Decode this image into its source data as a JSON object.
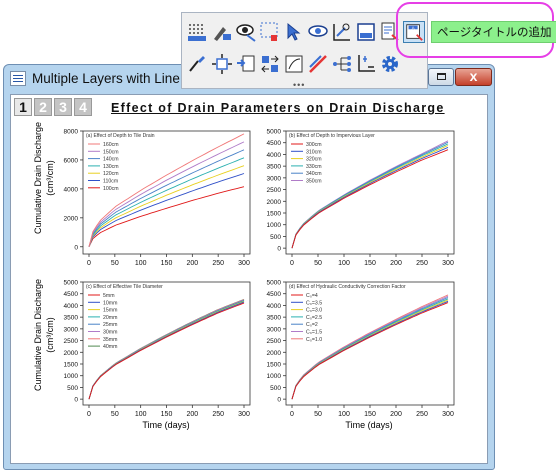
{
  "window": {
    "title": "Multiple Layers with Line Plo",
    "close_label": "x"
  },
  "layers": {
    "tabs": [
      "1",
      "2",
      "3",
      "4"
    ],
    "active": "1"
  },
  "page_title": "Effect of Drain Parameters on Drain Discharge",
  "tooltip": {
    "text": "ページタイトルの追加"
  },
  "toolbar": {
    "row1": [
      "speed-mode-icon",
      "data-reader-icon",
      "show-hide-icon",
      "data-selector-icon",
      "pointer-icon",
      "view-icon",
      "scale-in-icon",
      "rescale-icon",
      "layer-content-icon",
      "add-page-title-icon"
    ],
    "row2": [
      "brush-icon",
      "arrange-layers-icon",
      "merge-graph-icon",
      "swap-layers-icon",
      "add-axis-icon",
      "draw-line-icon",
      "tree-icon",
      "axis-break-icon",
      "settings-gear-icon"
    ],
    "selected": "add-page-title-icon"
  },
  "axis_text": {
    "y_label_line1": "Cumulative Drain Discharge",
    "y_label_left_top": "(cm³/cm)",
    "y_label_left_bottom": "(cm³/cm)",
    "x_label": "Time (days)"
  },
  "chart_data": [
    {
      "type": "line",
      "title": "(a) Effect of Depth to Tile Drain",
      "xlim": [
        0,
        300
      ],
      "ylim": [
        -500,
        8000
      ],
      "xticks": [
        0,
        50,
        100,
        150,
        200,
        250,
        300
      ],
      "yticks": [
        0,
        2000,
        4000,
        6000,
        8000
      ],
      "legend_position": "top-left",
      "x": [
        0,
        5,
        20,
        50,
        100,
        150,
        200,
        250,
        300
      ],
      "series": [
        {
          "name": "160cm",
          "color": "#f07878",
          "values": [
            0,
            900,
            1750,
            2750,
            3900,
            4950,
            5950,
            6900,
            7800
          ]
        },
        {
          "name": "150cm",
          "color": "#b07cc8",
          "values": [
            0,
            830,
            1620,
            2540,
            3620,
            4600,
            5520,
            6400,
            7250
          ]
        },
        {
          "name": "140cm",
          "color": "#4a82c8",
          "values": [
            0,
            770,
            1500,
            2350,
            3340,
            4250,
            5100,
            5920,
            6700
          ]
        },
        {
          "name": "130cm",
          "color": "#2ab0b0",
          "values": [
            0,
            700,
            1380,
            2160,
            3070,
            3900,
            4690,
            5430,
            6150
          ]
        },
        {
          "name": "120cm",
          "color": "#e8d020",
          "values": [
            0,
            640,
            1260,
            1970,
            2800,
            3560,
            4280,
            4960,
            5600
          ]
        },
        {
          "name": "110cm",
          "color": "#3050c8",
          "values": [
            0,
            580,
            1140,
            1780,
            2530,
            3210,
            3860,
            4480,
            5060
          ]
        },
        {
          "name": "100cm",
          "color": "#e01818",
          "values": [
            0,
            480,
            940,
            1470,
            2100,
            2660,
            3200,
            3700,
            4150
          ]
        }
      ]
    },
    {
      "type": "line",
      "title": "(b) Effect of Depth to Impervious Layer",
      "xlim": [
        0,
        300
      ],
      "ylim": [
        -250,
        5000
      ],
      "xticks": [
        0,
        50,
        100,
        150,
        200,
        250,
        300
      ],
      "yticks": [
        0,
        500,
        1000,
        1500,
        2000,
        2500,
        3000,
        3500,
        4000,
        4500,
        5000
      ],
      "legend_position": "top-left",
      "x": [
        0,
        5,
        20,
        50,
        100,
        150,
        200,
        250,
        300
      ],
      "series": [
        {
          "name": "300cm",
          "color": "#e01818",
          "values": [
            0,
            480,
            940,
            1480,
            2130,
            2710,
            3250,
            3760,
            4200
          ]
        },
        {
          "name": "310cm",
          "color": "#3050c8",
          "values": [
            0,
            490,
            960,
            1510,
            2170,
            2760,
            3310,
            3830,
            4300
          ]
        },
        {
          "name": "320cm",
          "color": "#e8d020",
          "values": [
            0,
            500,
            975,
            1535,
            2200,
            2800,
            3360,
            3890,
            4380
          ]
        },
        {
          "name": "330cm",
          "color": "#2ab0b0",
          "values": [
            0,
            505,
            990,
            1555,
            2230,
            2840,
            3410,
            3945,
            4450
          ]
        },
        {
          "name": "340cm",
          "color": "#4a82c8",
          "values": [
            0,
            510,
            1000,
            1570,
            2255,
            2870,
            3450,
            3990,
            4520
          ]
        },
        {
          "name": "350cm",
          "color": "#b07cc8",
          "values": [
            0,
            515,
            1010,
            1585,
            2275,
            2900,
            3485,
            4030,
            4580
          ]
        }
      ]
    },
    {
      "type": "line",
      "title": "(c) Effect of Effective Tile Diameter",
      "xlim": [
        0,
        300
      ],
      "ylim": [
        -250,
        5000
      ],
      "xticks": [
        0,
        50,
        100,
        150,
        200,
        250,
        300
      ],
      "yticks": [
        0,
        500,
        1000,
        1500,
        2000,
        2500,
        3000,
        3500,
        4000,
        4500,
        5000
      ],
      "legend_position": "top-left",
      "x": [
        0,
        5,
        20,
        50,
        100,
        150,
        200,
        250,
        300
      ],
      "series": [
        {
          "name": "5mm",
          "color": "#e01818",
          "values": [
            0,
            470,
            920,
            1450,
            2080,
            2650,
            3180,
            3680,
            4100
          ]
        },
        {
          "name": "10mm",
          "color": "#3050c8",
          "values": [
            0,
            475,
            930,
            1465,
            2100,
            2675,
            3210,
            3715,
            4140
          ]
        },
        {
          "name": "15mm",
          "color": "#e8d020",
          "values": [
            0,
            478,
            936,
            1475,
            2115,
            2695,
            3235,
            3745,
            4170
          ]
        },
        {
          "name": "20mm",
          "color": "#2ab0b0",
          "values": [
            0,
            481,
            942,
            1484,
            2128,
            2710,
            3255,
            3765,
            4195
          ]
        },
        {
          "name": "25mm",
          "color": "#4a82c8",
          "values": [
            0,
            484,
            948,
            1492,
            2140,
            2725,
            3272,
            3785,
            4215
          ]
        },
        {
          "name": "30mm",
          "color": "#b07cc8",
          "values": [
            0,
            486,
            952,
            1499,
            2150,
            2738,
            3287,
            3802,
            4232
          ]
        },
        {
          "name": "35mm",
          "color": "#f07878",
          "values": [
            0,
            488,
            956,
            1505,
            2158,
            2748,
            3300,
            3816,
            4246
          ]
        },
        {
          "name": "40mm",
          "color": "#508850",
          "values": [
            0,
            490,
            960,
            1510,
            2165,
            2757,
            3310,
            3828,
            4258
          ]
        }
      ]
    },
    {
      "type": "line",
      "title": "(d) Effect of Hydraulic Conductivity Correction Factor",
      "xlim": [
        0,
        300
      ],
      "ylim": [
        -250,
        5000
      ],
      "xticks": [
        0,
        50,
        100,
        150,
        200,
        250,
        300
      ],
      "yticks": [
        0,
        500,
        1000,
        1500,
        2000,
        2500,
        3000,
        3500,
        4000,
        4500,
        5000
      ],
      "legend_position": "top-left",
      "x": [
        0,
        5,
        20,
        50,
        100,
        150,
        200,
        250,
        300
      ],
      "series": [
        {
          "name": "C₀=4",
          "color": "#e01818",
          "values": [
            0,
            470,
            920,
            1450,
            2080,
            2650,
            3180,
            3680,
            4120
          ]
        },
        {
          "name": "C₀=3.5",
          "color": "#3050c8",
          "values": [
            0,
            476,
            932,
            1468,
            2105,
            2682,
            3220,
            3725,
            4175
          ]
        },
        {
          "name": "C₀=3.0",
          "color": "#e8d020",
          "values": [
            0,
            482,
            944,
            1486,
            2130,
            2714,
            3258,
            3770,
            4230
          ]
        },
        {
          "name": "C₀=2.5",
          "color": "#2ab0b0",
          "values": [
            0,
            488,
            956,
            1504,
            2155,
            2746,
            3296,
            3815,
            4285
          ]
        },
        {
          "name": "C₀=2",
          "color": "#4a82c8",
          "values": [
            0,
            494,
            968,
            1522,
            2180,
            2778,
            3334,
            3860,
            4340
          ]
        },
        {
          "name": "C₀=1.5",
          "color": "#b07cc8",
          "values": [
            0,
            500,
            980,
            1540,
            2205,
            2810,
            3372,
            3905,
            4395
          ]
        },
        {
          "name": "C₀=1.0",
          "color": "#f07878",
          "values": [
            0,
            506,
            992,
            1558,
            2230,
            2842,
            3410,
            3950,
            4450
          ]
        }
      ]
    }
  ]
}
